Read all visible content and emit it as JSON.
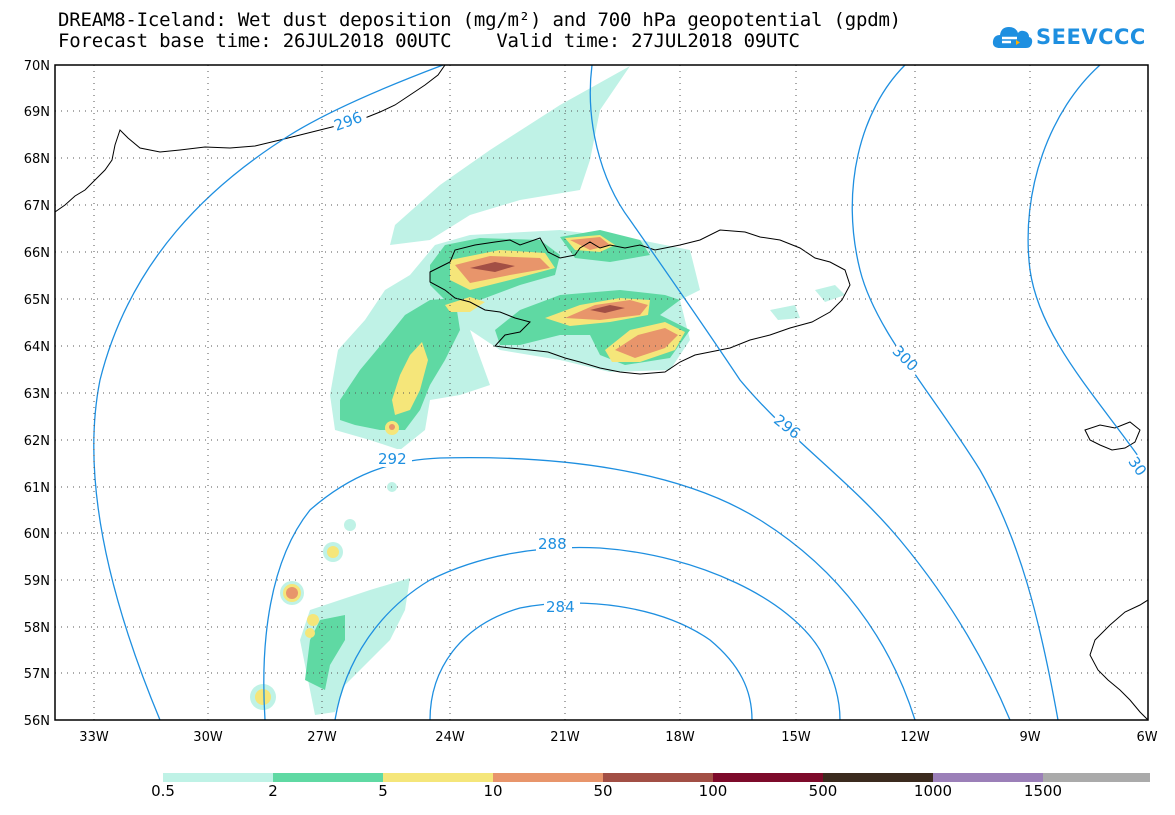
{
  "header": {
    "line1": "DREAM8-Iceland: Wet dust deposition (mg/m²) and 700 hPa geopotential (gpdm)",
    "line2": "Forecast base time: 26JUL2018 00UTC    Valid time: 27JUL2018 09UTC"
  },
  "logo": {
    "text": "SEEVCCC",
    "icon": "cloud-arrow-icon",
    "color": "#1e8fe0"
  },
  "map": {
    "lat_labels": [
      "70N",
      "69N",
      "68N",
      "67N",
      "66N",
      "65N",
      "64N",
      "63N",
      "62N",
      "61N",
      "60N",
      "59N",
      "58N",
      "57N",
      "56N"
    ],
    "lon_labels": [
      "33W",
      "30W",
      "27W",
      "24W",
      "21W",
      "18W",
      "15W",
      "12W",
      "9W",
      "6W"
    ],
    "contour_color": "#1e8fe0",
    "contour_labels": [
      "296",
      "300",
      "296",
      "292",
      "288",
      "284",
      "30"
    ]
  },
  "colorbar": {
    "labels": [
      "0.5",
      "2",
      "5",
      "10",
      "50",
      "100",
      "500",
      "1000",
      "1500"
    ],
    "colors": [
      "#bff2e6",
      "#5fd9a3",
      "#f5e67a",
      "#e8956b",
      "#a24f45",
      "#7d0a2a",
      "#3b2a1e",
      "#9b7fb8",
      "#aaaaaa"
    ]
  },
  "chart_data": {
    "type": "map",
    "variable": "Wet dust deposition (mg/m²)",
    "overlay": "700 hPa geopotential (gpdm)",
    "lat_range": [
      "56N",
      "70N"
    ],
    "lon_range": [
      "34W",
      "6W"
    ],
    "contour_levels": [
      284,
      288,
      292,
      296,
      300
    ],
    "shading_levels": [
      0.5,
      2,
      5,
      10,
      50,
      100,
      500,
      1000,
      1500
    ]
  }
}
